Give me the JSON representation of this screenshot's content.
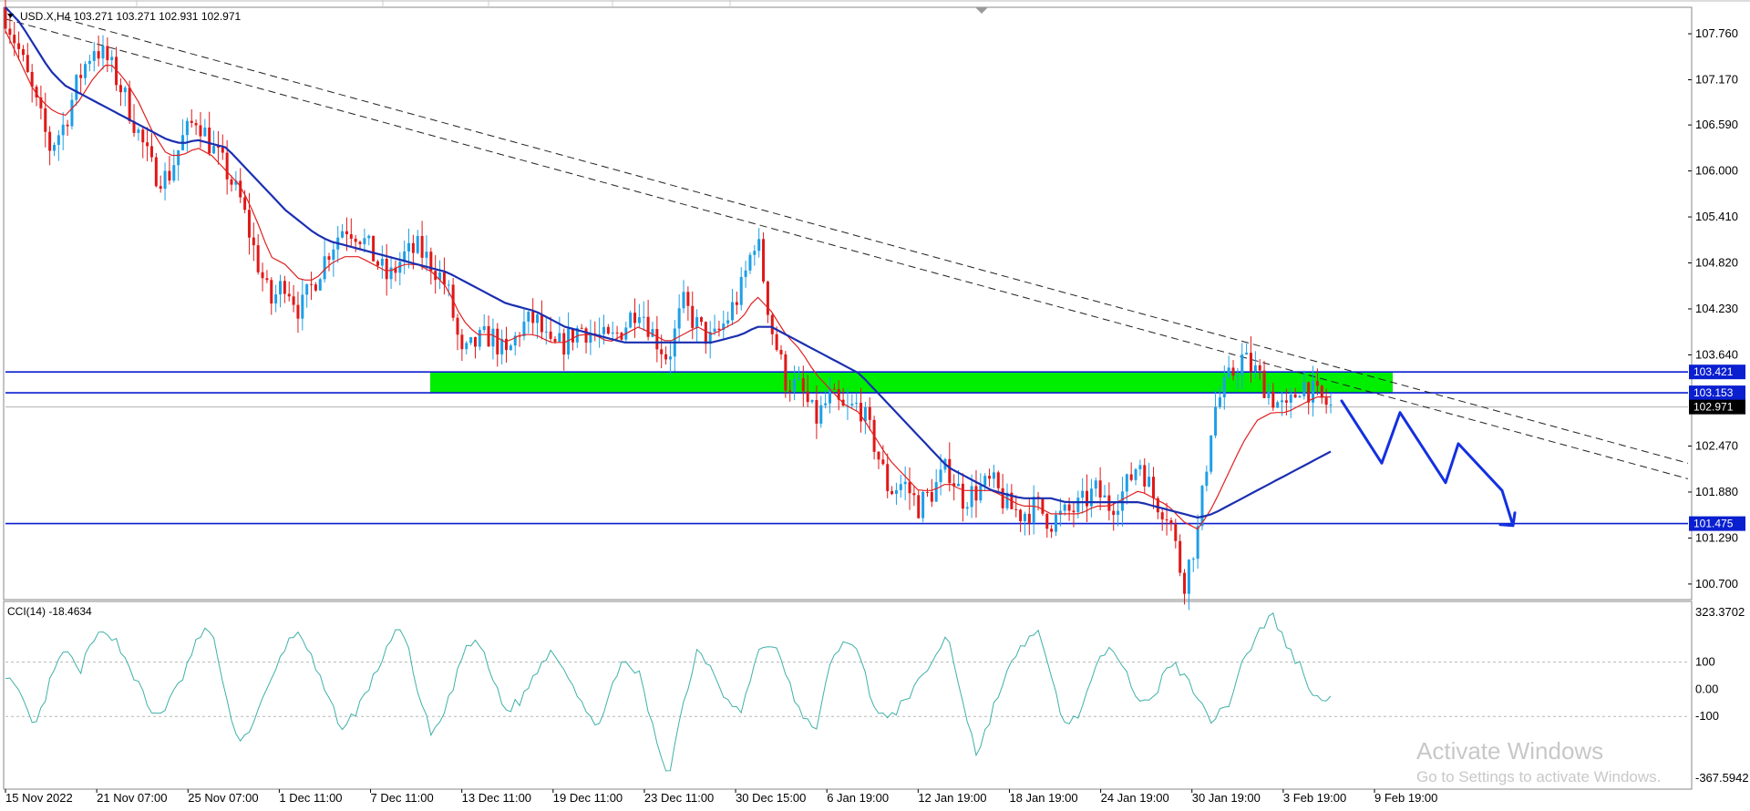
{
  "window": {
    "header_text": "USD.X,H4  103.271 103.271 102.931 102.971",
    "watermark_title": "Activate Windows",
    "watermark_subtitle": "Go to Settings to activate Windows."
  },
  "colors": {
    "bull": "#1e9fe6",
    "bear": "#e01818",
    "ma_fast": "#e02020",
    "ma_slow": "#1a2fb0",
    "zone": "#00ee00",
    "level_line": "#0a1fd0",
    "trendline": "#222222",
    "cci": "#3fb0a8",
    "projection": "#1430e0"
  },
  "chart_data": [
    {
      "type": "candlestick",
      "symbol": "USD.X",
      "timeframe": "H4",
      "ohlc_last": {
        "open": 103.271,
        "high": 103.271,
        "low": 102.931,
        "close": 102.971
      },
      "ylim": [
        100.5,
        108.1
      ],
      "y_ticks": [
        "107.760",
        "107.170",
        "106.590",
        "106.000",
        "105.410",
        "104.820",
        "104.230",
        "103.640",
        "102.470",
        "101.880",
        "101.290",
        "100.700"
      ],
      "x_tick_labels": [
        "15 Nov 2022",
        "21 Nov 07:00",
        "25 Nov 07:00",
        "1 Dec 11:00",
        "7 Dec 11:00",
        "13 Dec 11:00",
        "19 Dec 11:00",
        "23 Dec 11:00",
        "30 Dec 15:00",
        "6 Jan 19:00",
        "12 Jan 19:00",
        "18 Jan 19:00",
        "24 Jan 19:00",
        "30 Jan 19:00",
        "3 Feb 19:00",
        "9 Feb 19:00"
      ],
      "close_path": [
        108.0,
        107.5,
        106.9,
        106.3,
        106.6,
        107.2,
        107.6,
        107.4,
        107.0,
        106.5,
        106.0,
        105.9,
        106.4,
        106.7,
        106.3,
        106.0,
        105.6,
        104.9,
        104.3,
        104.6,
        104.2,
        104.6,
        105.0,
        105.3,
        105.2,
        104.9,
        104.6,
        104.9,
        105.0,
        104.8,
        104.5,
        103.6,
        103.8,
        103.9,
        103.6,
        104.0,
        104.1,
        103.7,
        103.8,
        104.0,
        103.9,
        103.8,
        104.0,
        104.3,
        103.9,
        103.6,
        104.3,
        104.0,
        103.8,
        104.1,
        104.5,
        105.2,
        104.0,
        103.3,
        103.2,
        102.8,
        103.1,
        102.9,
        103.0,
        102.5,
        101.9,
        102.0,
        101.7,
        101.9,
        102.2,
        101.8,
        101.9,
        102.0,
        101.7,
        101.6,
        101.7,
        101.5,
        101.6,
        101.7,
        101.9,
        101.7,
        101.9,
        102.3,
        101.8,
        101.6,
        100.7,
        101.4,
        102.9,
        103.3,
        103.6,
        103.4,
        103.1,
        102.9,
        103.3,
        103.1,
        102.97
      ],
      "ma_fast_path": [
        107.8,
        107.4,
        107.0,
        106.8,
        106.7,
        106.9,
        107.2,
        107.4,
        107.2,
        106.9,
        106.5,
        106.2,
        106.2,
        106.3,
        106.2,
        106.0,
        105.8,
        105.4,
        104.9,
        104.8,
        104.6,
        104.6,
        104.8,
        104.9,
        104.9,
        104.8,
        104.7,
        104.8,
        104.8,
        104.7,
        104.5,
        104.1,
        103.9,
        103.9,
        103.8,
        103.9,
        103.9,
        103.8,
        103.8,
        103.9,
        103.9,
        103.8,
        103.9,
        104.0,
        103.9,
        103.8,
        103.9,
        104.0,
        103.9,
        104.0,
        104.1,
        104.4,
        104.2,
        103.9,
        103.7,
        103.4,
        103.2,
        103.0,
        102.9,
        102.6,
        102.3,
        102.1,
        101.9,
        101.9,
        102.0,
        101.9,
        101.9,
        101.9,
        101.8,
        101.7,
        101.7,
        101.6,
        101.6,
        101.6,
        101.7,
        101.7,
        101.8,
        101.9,
        101.8,
        101.7,
        101.5,
        101.4,
        101.7,
        102.1,
        102.5,
        102.8,
        102.9,
        102.9,
        103.0,
        103.1,
        103.1
      ],
      "ma_slow_path": [
        108.1,
        107.9,
        107.6,
        107.3,
        107.1,
        107.0,
        106.9,
        106.8,
        106.7,
        106.6,
        106.5,
        106.4,
        106.35,
        106.4,
        106.35,
        106.3,
        106.1,
        105.9,
        105.7,
        105.5,
        105.35,
        105.2,
        105.1,
        105.05,
        105.0,
        104.95,
        104.9,
        104.85,
        104.8,
        104.75,
        104.7,
        104.6,
        104.5,
        104.4,
        104.3,
        104.25,
        104.2,
        104.1,
        104.0,
        103.95,
        103.9,
        103.85,
        103.8,
        103.8,
        103.8,
        103.8,
        103.8,
        103.8,
        103.8,
        103.85,
        103.9,
        104.0,
        104.0,
        103.9,
        103.8,
        103.7,
        103.6,
        103.5,
        103.4,
        103.2,
        103.0,
        102.8,
        102.6,
        102.4,
        102.2,
        102.1,
        102.0,
        101.9,
        101.85,
        101.8,
        101.8,
        101.8,
        101.75,
        101.75,
        101.75,
        101.75,
        101.75,
        101.75,
        101.7,
        101.65,
        101.6,
        101.55,
        101.6,
        101.7,
        101.8,
        101.9,
        102.0,
        102.1,
        102.2,
        102.3,
        102.4
      ],
      "levels": [
        {
          "price": 103.421,
          "label": "103.421"
        },
        {
          "price": 103.153,
          "label": "103.153"
        },
        {
          "price": 101.475,
          "label": "101.475"
        }
      ],
      "current_price": {
        "price": 102.971,
        "label": "102.971"
      },
      "supply_zone": {
        "high": 103.421,
        "low": 103.153
      },
      "trendlines": [
        {
          "from": [
            0.0,
            107.95
          ],
          "to": [
            1.0,
            102.05
          ]
        },
        {
          "from": [
            0.035,
            107.95
          ],
          "to": [
            1.0,
            102.25
          ]
        }
      ],
      "projection_path": [
        103.05,
        102.25,
        102.9,
        102.0,
        102.5,
        101.9,
        101.45
      ]
    },
    {
      "type": "line",
      "indicator": "CCI(14)",
      "header_label": "CCI(14) -18.4634",
      "ylim": [
        -367.5942,
        323.3702
      ],
      "y_ticks": [
        {
          "value": 323.3702,
          "label": "323.3702"
        },
        {
          "value": 100,
          "label": "100"
        },
        {
          "value": 0,
          "label": "0.00"
        },
        {
          "value": -100,
          "label": "-100"
        },
        {
          "value": -367.5942,
          "label": "-367.5942"
        }
      ],
      "levels": [
        100,
        -100
      ],
      "values": [
        60,
        -30,
        -150,
        20,
        150,
        60,
        180,
        220,
        130,
        20,
        -100,
        -60,
        40,
        180,
        230,
        -50,
        -200,
        -100,
        20,
        160,
        220,
        80,
        -50,
        -150,
        -60,
        40,
        170,
        230,
        -20,
        -180,
        -60,
        120,
        190,
        50,
        -80,
        -40,
        60,
        150,
        80,
        -30,
        -150,
        -20,
        100,
        60,
        -150,
        -320,
        -60,
        150,
        80,
        -40,
        -90,
        130,
        180,
        60,
        -100,
        -150,
        80,
        200,
        120,
        -60,
        -120,
        -40,
        20,
        110,
        200,
        -40,
        -250,
        -80,
        60,
        150,
        230,
        40,
        -140,
        -80,
        60,
        180,
        90,
        -60,
        -40,
        110,
        50,
        -20,
        -120,
        -60,
        100,
        200,
        280,
        160,
        80,
        -40,
        -18.46
      ]
    }
  ]
}
